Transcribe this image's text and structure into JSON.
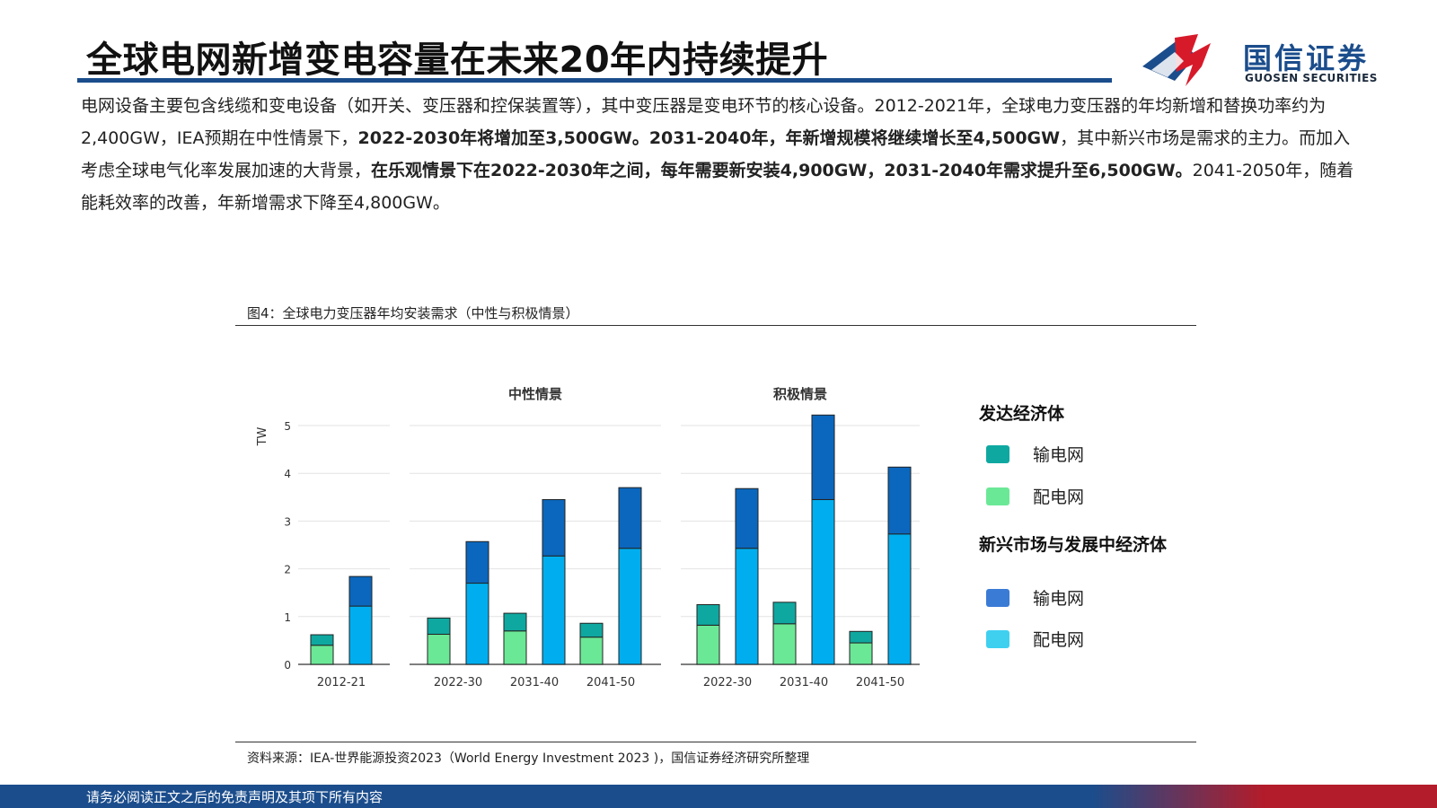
{
  "header": {
    "title": "全球电网新增变电容量在未来20年内持续提升",
    "logo_cn": "国信证券",
    "logo_en": "GUOSEN SECURITIES"
  },
  "intro": {
    "p1": "电网设备主要包含线缆和变电设备（如开关、变压器和控保装置等），其中变压器是变电环节的核心设备。2012-2021年，全球电力变压器的年均新增和替换功率约为2,400GW，IEA预期在中性情景下，",
    "b1": "2022-2030年将增加至3,500GW。2031-2040年，年新增规模将继续增长至4,500GW",
    "p2": "，其中新兴市场是需求的主力。而加入考虑全球电气化率发展加速的大背景，",
    "b2": "在乐观情景下在2022-2030年之间，每年需要新安装4,900GW，2031-2040年需求提升至6,500GW。",
    "p3": "2041-2050年，随着能耗效率的改善，年新增需求下降至4,800GW。"
  },
  "figure": {
    "caption": "图4：全球电力变压器年均安装需求（中性与积极情景）",
    "source": "资料来源：IEA-世界能源投资2023（World Energy Investment 2023 )，国信证券经济研究所整理"
  },
  "legend": {
    "group1_title": "发达经济体",
    "group1_items": [
      {
        "label": "输电网",
        "color": "#0fa8a0"
      },
      {
        "label": "配电网",
        "color": "#6be896"
      }
    ],
    "group2_title": "新兴市场与发展中经济体",
    "group2_items": [
      {
        "label": "输电网",
        "color": "#3a7bd5"
      },
      {
        "label": "配电网",
        "color": "#3fd0f0"
      }
    ]
  },
  "chart_data": {
    "type": "bar",
    "stacked": true,
    "ylabel": "TW",
    "ylim": [
      0,
      5
    ],
    "yticks": [
      0,
      1,
      2,
      3,
      4,
      5
    ],
    "grid": true,
    "colors": {
      "adv_transmission": "#0fa8a0",
      "adv_distribution": "#6be896",
      "eme_transmission": "#0b67bd",
      "eme_distribution": "#00aeef"
    },
    "panels": [
      {
        "title": "",
        "groups": [
          {
            "category": "2012-21",
            "advanced": {
              "distribution": 0.4,
              "transmission": 0.22
            },
            "emerging": {
              "distribution": 1.22,
              "transmission": 0.62
            }
          }
        ]
      },
      {
        "title": "中性情景",
        "groups": [
          {
            "category": "2022-30",
            "advanced": {
              "distribution": 0.63,
              "transmission": 0.34
            },
            "emerging": {
              "distribution": 1.7,
              "transmission": 0.87
            }
          },
          {
            "category": "2031-40",
            "advanced": {
              "distribution": 0.7,
              "transmission": 0.37
            },
            "emerging": {
              "distribution": 2.27,
              "transmission": 1.18
            }
          },
          {
            "category": "2041-50",
            "advanced": {
              "distribution": 0.57,
              "transmission": 0.29
            },
            "emerging": {
              "distribution": 2.43,
              "transmission": 1.27
            }
          }
        ]
      },
      {
        "title": "积极情景",
        "groups": [
          {
            "category": "2022-30",
            "advanced": {
              "distribution": 0.82,
              "transmission": 0.43
            },
            "emerging": {
              "distribution": 2.43,
              "transmission": 1.25
            }
          },
          {
            "category": "2031-40",
            "advanced": {
              "distribution": 0.85,
              "transmission": 0.45
            },
            "emerging": {
              "distribution": 3.45,
              "transmission": 1.77
            }
          },
          {
            "category": "2041-50",
            "advanced": {
              "distribution": 0.45,
              "transmission": 0.24
            },
            "emerging": {
              "distribution": 2.73,
              "transmission": 1.4
            }
          }
        ]
      }
    ]
  },
  "footer": {
    "disclaimer": "请务必阅读正文之后的免责声明及其项下所有内容"
  }
}
